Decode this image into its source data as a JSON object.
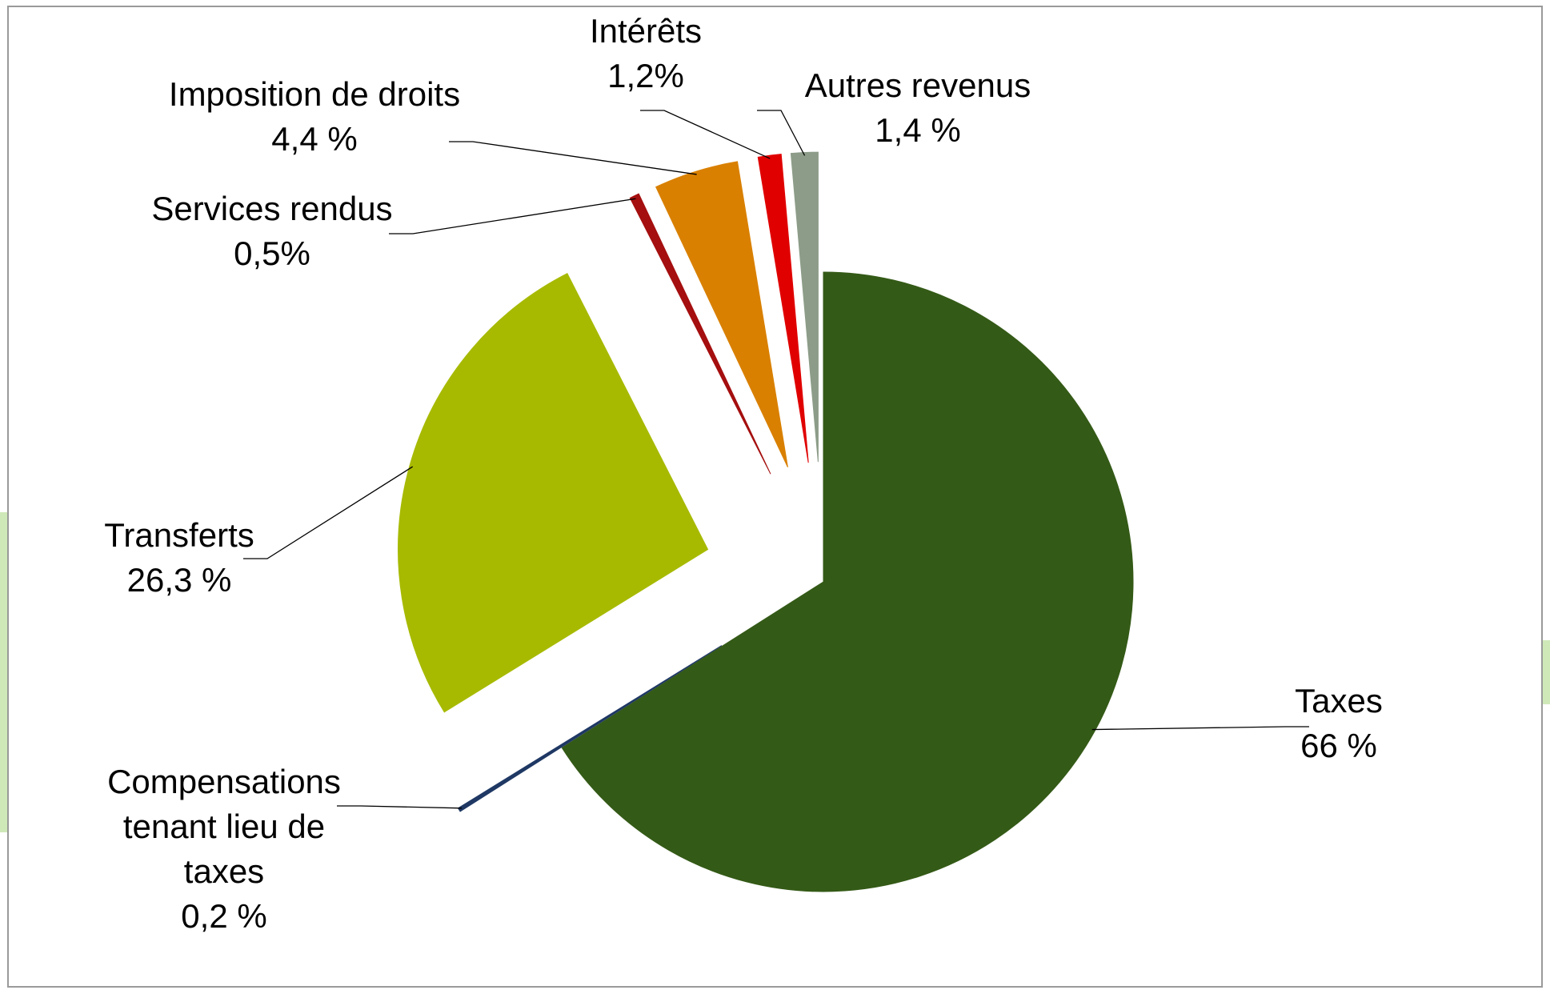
{
  "chart_data": {
    "type": "pie",
    "categories": [
      "Taxes",
      "Compensations tenant lieu de taxes",
      "Transferts",
      "Services rendus",
      "Imposition de droits",
      "Intérêts",
      "Autres revenus"
    ],
    "values": [
      66,
      0.2,
      26.3,
      0.5,
      4.4,
      1.2,
      1.4
    ],
    "value_labels": [
      "66 %",
      "0,2 %",
      "26,3 %",
      "0,5%",
      "4,4 %",
      "1,2%",
      "1,4 %"
    ],
    "colors": [
      "#345a17",
      "#1f3864",
      "#a7ba00",
      "#a50f0f",
      "#d98000",
      "#e00000",
      "#8c9c88"
    ]
  }
}
